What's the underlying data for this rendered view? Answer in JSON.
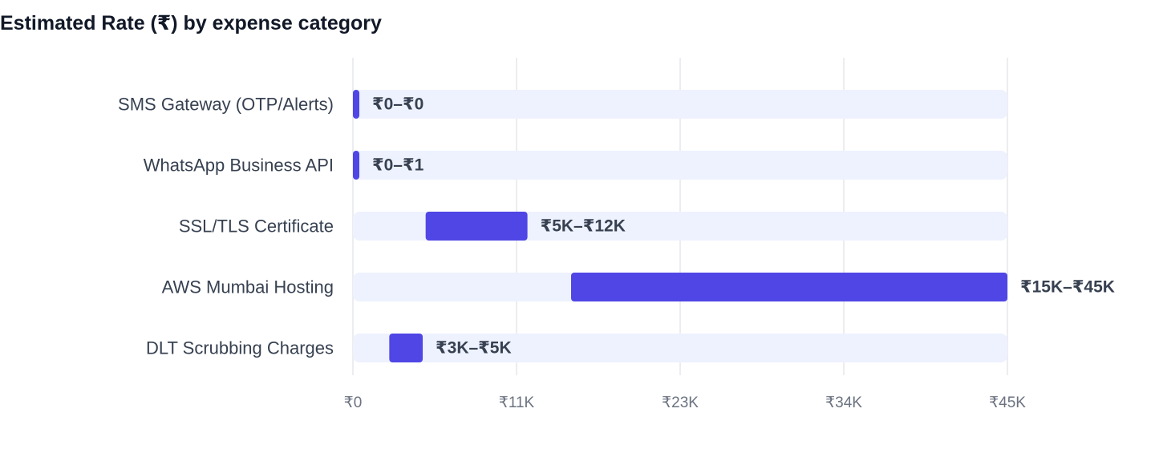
{
  "chart_data": {
    "type": "bar",
    "orientation": "horizontal",
    "variant": "range",
    "title": "Estimated Rate (₹) by expense category",
    "xlabel": "",
    "ylabel": "",
    "xlim": [
      0,
      45000
    ],
    "grid": true,
    "categories": [
      "SMS Gateway (OTP/Alerts)",
      "WhatsApp Business API",
      "SSL/TLS Certificate",
      "AWS Mumbai Hosting",
      "DLT Scrubbing Charges"
    ],
    "ranges": [
      [
        0,
        0.25
      ],
      [
        0,
        1
      ],
      [
        5000,
        12000
      ],
      [
        15000,
        45000
      ],
      [
        2500,
        4800
      ]
    ],
    "data_labels": [
      "₹0–₹0",
      "₹0–₹1",
      "₹5K–₹12K",
      "₹15K–₹45K",
      "₹3K–₹5K"
    ],
    "ticks": [
      0,
      11250,
      22500,
      33750,
      45000
    ],
    "tick_labels": [
      "₹0",
      "₹11K",
      "₹23K",
      "₹34K",
      "₹45K"
    ],
    "colors": {
      "bar": "#4f46e5",
      "track": "#eef2ff",
      "grid": "#e5e7eb",
      "title": "#111827",
      "category_text": "#374151",
      "tick_text": "#6b7280",
      "label_text": "#374151"
    }
  }
}
